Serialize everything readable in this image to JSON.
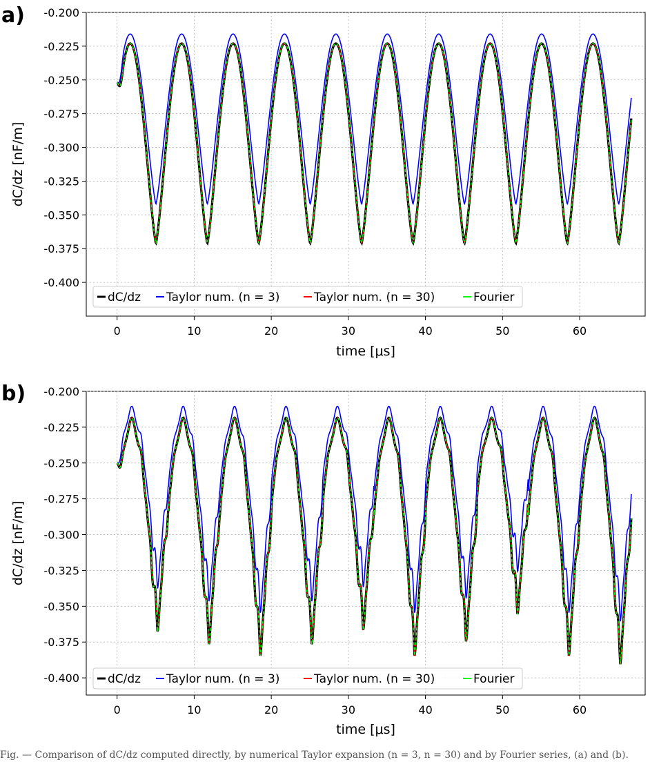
{
  "chart_data": [
    {
      "panel_label": "a)",
      "type": "line",
      "xlabel": "time [μs]",
      "ylabel": "dC/dz [nF/m]",
      "xlim": [
        -4,
        68.5
      ],
      "ylim": [
        -0.425,
        -0.2
      ],
      "xticks": [
        0,
        10,
        20,
        30,
        40,
        50,
        60
      ],
      "yticks": [
        -0.2,
        -0.225,
        -0.25,
        -0.275,
        -0.3,
        -0.325,
        -0.35,
        -0.375,
        -0.4
      ],
      "ytick_labels": [
        "-0.200",
        "-0.225",
        "-0.250",
        "-0.275",
        "-0.300",
        "-0.325",
        "-0.350",
        "-0.375",
        "-0.400"
      ],
      "xtick_labels": [
        "0",
        "10",
        "20",
        "30",
        "40",
        "50",
        "60"
      ],
      "grid": true,
      "legend_position": "lower-left",
      "period": 6.67,
      "x_range": [
        0,
        66.7
      ],
      "signal": {
        "peak_time": 1.7,
        "trough_time": 5.0,
        "peak": -0.223,
        "trough": -0.371,
        "start": -0.252,
        "end": -0.254
      },
      "series": [
        {
          "name": "dC/dz",
          "color": "#000000",
          "peak": -0.223,
          "trough": -0.371
        },
        {
          "name": "Taylor num. (n = 3)",
          "color": "#0000ff",
          "peak": -0.216,
          "trough": -0.342
        },
        {
          "name": "Taylor num. (n = 30)",
          "color": "#ff0000",
          "peak": -0.223,
          "trough": -0.371
        },
        {
          "name": "Fourier",
          "color": "#00ff00",
          "peak": -0.223,
          "trough": -0.371
        }
      ]
    },
    {
      "panel_label": "b)",
      "type": "line",
      "xlabel": "time [μs]",
      "ylabel": "dC/dz [nF/m]",
      "xlim": [
        -4,
        68.5
      ],
      "ylim": [
        -0.412,
        -0.2
      ],
      "xticks": [
        0,
        10,
        20,
        30,
        40,
        50,
        60
      ],
      "yticks": [
        -0.2,
        -0.225,
        -0.25,
        -0.275,
        -0.3,
        -0.325,
        -0.35,
        -0.375,
        -0.4
      ],
      "ytick_labels": [
        "-0.200",
        "-0.225",
        "-0.250",
        "-0.275",
        "-0.300",
        "-0.325",
        "-0.350",
        "-0.375",
        "-0.400"
      ],
      "xtick_labels": [
        "0",
        "10",
        "20",
        "30",
        "40",
        "50",
        "60"
      ],
      "grid": true,
      "legend_position": "lower-left",
      "period": 6.67,
      "x_range": [
        0,
        66.7
      ],
      "signal": {
        "peak_time": 1.9,
        "trough_time": 4.8,
        "peak": -0.222,
        "trough": -0.39,
        "start": -0.25,
        "end": -0.251
      },
      "cycle_minima": [
        -0.383,
        -0.392,
        -0.4,
        -0.392,
        -0.382,
        -0.4,
        -0.39,
        -0.371,
        -0.4,
        -0.406
      ],
      "series": [
        {
          "name": "dC/dz",
          "color": "#000000",
          "peak": -0.222
        },
        {
          "name": "Taylor num. (n = 3)",
          "color": "#0000ff",
          "peak": -0.214
        },
        {
          "name": "Taylor num. (n = 30)",
          "color": "#ff0000",
          "peak": -0.222
        },
        {
          "name": "Fourier",
          "color": "#00ff00",
          "peak": -0.222
        }
      ]
    }
  ],
  "legend": {
    "label_dcdz": "dC/dz",
    "label_taylor3": "Taylor num. (n = 3)",
    "label_taylor30": "Taylor num. (n = 30)",
    "label_fourier": "Fourier"
  },
  "caption": "Fig. — Comparison of dC/dz computed directly, by numerical Taylor expansion (n = 3, n = 30) and by Fourier series, (a) and (b)."
}
